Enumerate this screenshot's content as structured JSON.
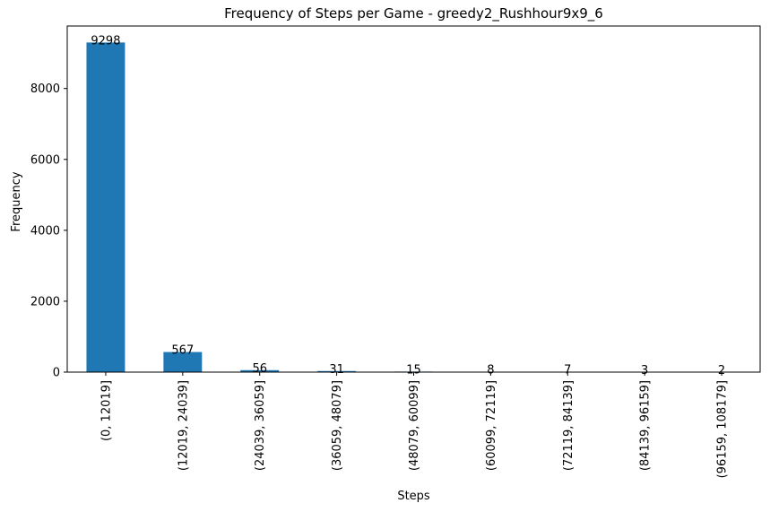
{
  "chart_data": {
    "type": "bar",
    "title": "Frequency of Steps per Game - greedy2_Rushhour9x9_6",
    "xlabel": "Steps",
    "ylabel": "Frequency",
    "categories": [
      "(0, 12019]",
      "(12019, 24039]",
      "(24039, 36059]",
      "(36059, 48079]",
      "(48079, 60099]",
      "(60099, 72119]",
      "(72119, 84139]",
      "(84139, 96159]",
      "(96159, 108179]"
    ],
    "values": [
      9298,
      567,
      56,
      31,
      15,
      8,
      7,
      3,
      2
    ],
    "data_labels": [
      "9298",
      "567",
      "56",
      "31",
      "15",
      "8",
      "7",
      "3",
      "2"
    ],
    "yticks": [
      0,
      2000,
      4000,
      6000,
      8000
    ],
    "ytick_labels": [
      "0",
      "2000",
      "4000",
      "6000",
      "8000"
    ],
    "ylim": [
      0,
      9763
    ],
    "grid": false,
    "bar_color": "#1f77b4"
  }
}
